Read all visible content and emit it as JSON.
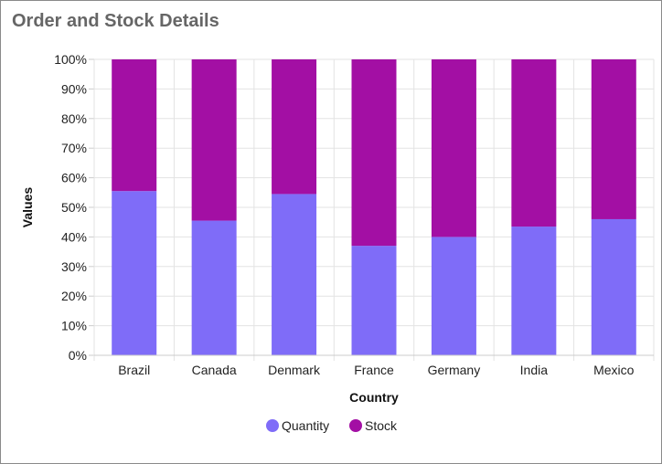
{
  "header": {
    "title": "Order and Stock Details"
  },
  "chart_data": {
    "type": "bar",
    "stacking": "100%",
    "xlabel": "Country",
    "ylabel": "Values",
    "categories": [
      "Brazil",
      "Canada",
      "Denmark",
      "France",
      "Germany",
      "India",
      "Mexico"
    ],
    "series": [
      {
        "name": "Quantity",
        "color": "#7f6cf8",
        "values": [
          55.5,
          45.5,
          54.5,
          37,
          40,
          43.5,
          46
        ]
      },
      {
        "name": "Stock",
        "color": "#a30fa4",
        "values": [
          44.5,
          54.5,
          45.5,
          63,
          60,
          56.5,
          54
        ]
      }
    ],
    "y_ticks": [
      "0%",
      "10%",
      "20%",
      "30%",
      "40%",
      "50%",
      "60%",
      "70%",
      "80%",
      "90%",
      "100%"
    ],
    "ylim": [
      0,
      100
    ],
    "grid": true,
    "legend_position": "bottom-center"
  }
}
